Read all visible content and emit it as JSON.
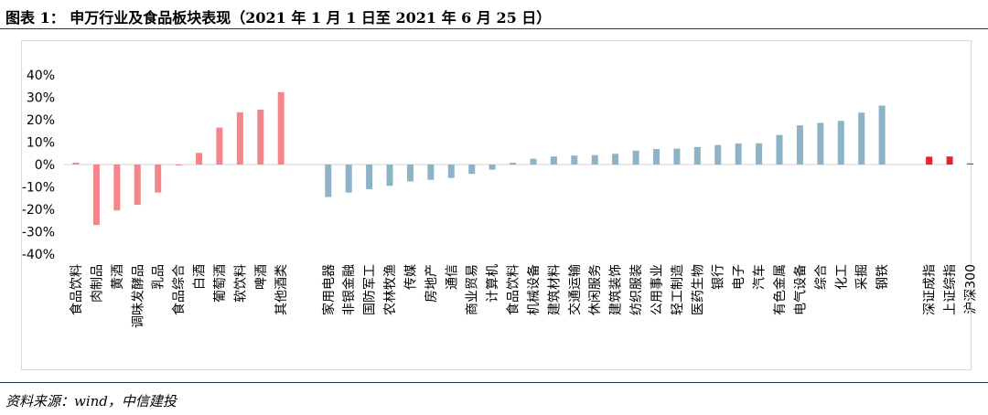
{
  "header": {
    "title": "图表 1：  申万行业及食品板块表现（2021 年 1 月 1 日至 2021 年 6 月 25 日）"
  },
  "footer": {
    "source": "资料来源：wind，中信建投"
  },
  "colors": {
    "food": "#f4868b",
    "industry": "#8eb2c6",
    "index": "#e8232a",
    "tick": "#000000"
  },
  "chart_data": {
    "type": "bar",
    "title": "",
    "xlabel": "",
    "ylabel": "",
    "ylim": [
      -40,
      40
    ],
    "y_ticks": [
      "40%",
      "30%",
      "20%",
      "10%",
      "0%",
      "-10%",
      "-20%",
      "-30%",
      "-40%"
    ],
    "y_tick_values": [
      40,
      30,
      20,
      10,
      0,
      -10,
      -20,
      -30,
      -40
    ],
    "groups": [
      {
        "name": "food",
        "color_key": "food",
        "categories": [
          "食品饮料",
          "肉制品",
          "黄酒",
          "调味发酵品",
          "乳品",
          "食品综合",
          "白酒",
          "葡萄酒",
          "软饮料",
          "啤酒",
          "其他酒类"
        ],
        "values": [
          0.8,
          -27,
          -20.5,
          -18,
          -12.5,
          -0.3,
          5.2,
          16.5,
          23.3,
          24.5,
          32.3
        ]
      },
      {
        "name": "industry",
        "color_key": "industry",
        "categories": [
          "家用电器",
          "非银金融",
          "国防军工",
          "农林牧渔",
          "传媒",
          "房地产",
          "通信",
          "商业贸易",
          "计算机",
          "食品饮料",
          "机械设备",
          "建筑材料",
          "交通运输",
          "休闲服务",
          "建筑装饰",
          "纺织服装",
          "公用事业",
          "轻工制造",
          "医药生物",
          "银行",
          "电子",
          "汽车",
          "有色金属",
          "电气设备",
          "综合",
          "化工",
          "采掘",
          "钢铁"
        ],
        "values": [
          -14.5,
          -12.5,
          -11,
          -9.5,
          -7.5,
          -6.8,
          -6,
          -4.2,
          -2.3,
          0.8,
          2.6,
          3.6,
          4,
          4.2,
          4.8,
          6.2,
          6.9,
          7.1,
          7.8,
          8.7,
          9.4,
          9.5,
          13.2,
          17.5,
          18.6,
          19.5,
          23.2,
          26.3
        ]
      },
      {
        "name": "index",
        "color_key": "index",
        "categories": [
          "深证成指",
          "上证综指",
          "沪深300"
        ],
        "values": [
          3.5,
          3.6,
          0.5
        ]
      }
    ]
  }
}
